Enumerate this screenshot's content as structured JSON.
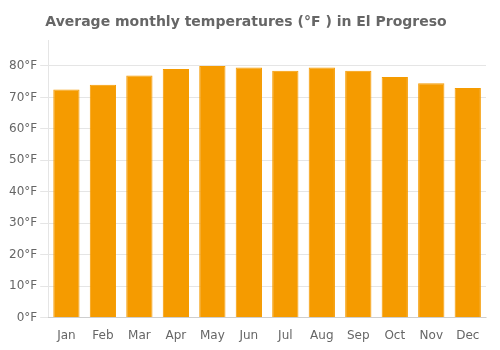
{
  "chart_data": {
    "type": "bar",
    "title": "Average monthly temperatures (°F ) in El Progreso",
    "categories": [
      "Jan",
      "Feb",
      "Mar",
      "Apr",
      "May",
      "Jun",
      "Jul",
      "Aug",
      "Sep",
      "Oct",
      "Nov",
      "Dec"
    ],
    "values": [
      72.5,
      74.0,
      77.0,
      79.0,
      80.0,
      79.5,
      78.5,
      79.5,
      78.5,
      76.5,
      74.5,
      73.0
    ],
    "color": "#F59B00",
    "ylim": [
      0,
      88
    ],
    "yticks": [
      {
        "value": 0,
        "label": "0°F"
      },
      {
        "value": 10,
        "label": "10°F"
      },
      {
        "value": 20,
        "label": "20°F"
      },
      {
        "value": 30,
        "label": "30°F"
      },
      {
        "value": 40,
        "label": "40°F"
      },
      {
        "value": 50,
        "label": "50°F"
      },
      {
        "value": 60,
        "label": "60°F"
      },
      {
        "value": 70,
        "label": "70°F"
      },
      {
        "value": 80,
        "label": "80°F"
      }
    ],
    "grid": true
  }
}
